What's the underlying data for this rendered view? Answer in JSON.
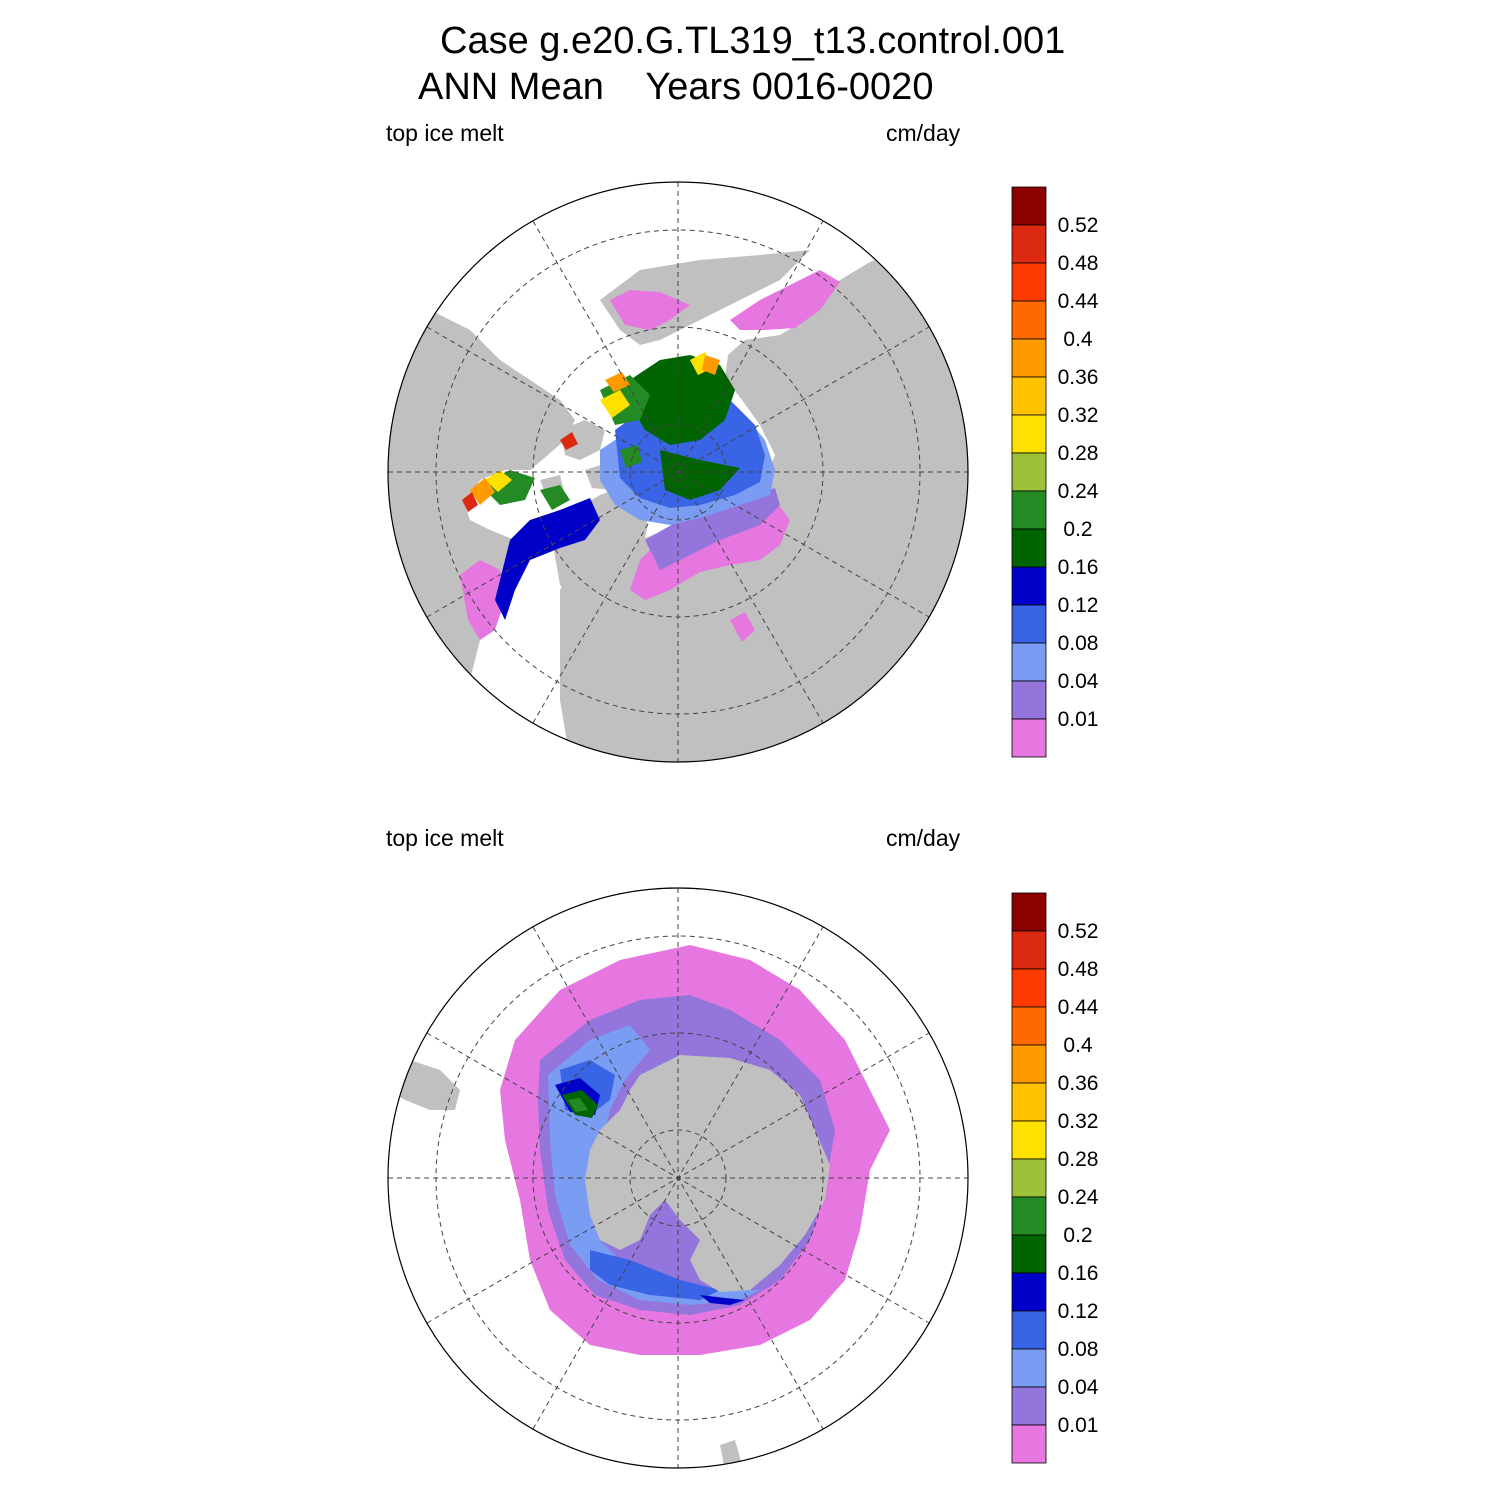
{
  "title_line1": "Case g.e20.G.TL319_t13.control.001",
  "title_line2": "ANN Mean    Years 0016-0020",
  "panels": [
    {
      "id": "north",
      "left_label": "top ice melt",
      "right_label": "cm/day"
    },
    {
      "id": "south",
      "left_label": "top ice melt",
      "right_label": "cm/day"
    }
  ],
  "colorbar": {
    "tick_labels": [
      "0.52",
      "0.48",
      "0.44",
      "0.4",
      "0.36",
      "0.32",
      "0.28",
      "0.24",
      "0.2",
      "0.16",
      "0.12",
      "0.08",
      "0.04",
      "0.01"
    ],
    "colors": [
      "#8b0000",
      "#dc2a12",
      "#ff3a00",
      "#ff6a00",
      "#ff9a00",
      "#ffc100",
      "#ffe100",
      "#9cc23a",
      "#248a24",
      "#006400",
      "#0000c8",
      "#3a64e6",
      "#7a9cf2",
      "#9375dc",
      "#e676e0"
    ]
  },
  "map_colors": {
    "land": "#c0c0c0",
    "ocean": "#ffffff"
  }
}
